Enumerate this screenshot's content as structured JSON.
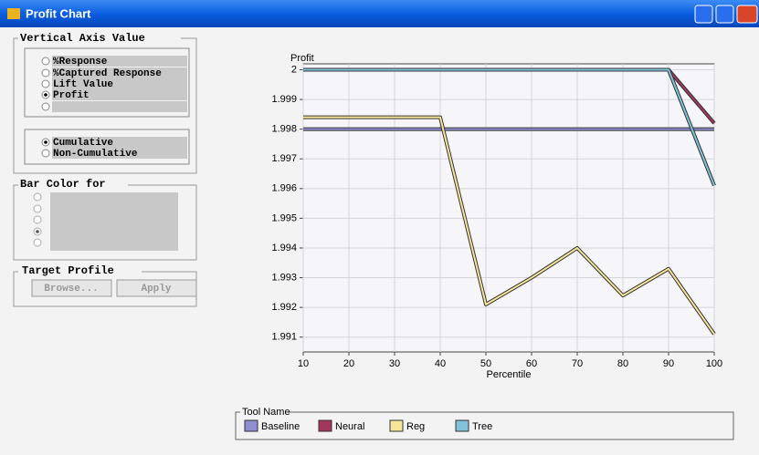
{
  "window": {
    "title": "Profit Chart"
  },
  "panel": {
    "vertical_axis": {
      "title": "Vertical Axis Value",
      "options": [
        "%Response",
        "%Captured Response",
        "Lift Value",
        "Profit"
      ],
      "selected": 3
    },
    "mode": {
      "options": [
        "Cumulative",
        "Non-Cumulative"
      ],
      "selected": 0
    },
    "bar_color": {
      "title": "Bar Color for"
    },
    "target_profile": {
      "title": "Target Profile",
      "buttons": [
        "Browse...",
        "Apply"
      ]
    }
  },
  "chart_data": {
    "type": "line",
    "y_label": "Profit",
    "x_label": "Percentile",
    "legend_title": "Tool Name",
    "x": [
      10,
      20,
      30,
      40,
      50,
      60,
      70,
      80,
      90,
      100
    ],
    "series": [
      {
        "name": "Baseline",
        "color": "#8e8ed0",
        "values": [
          1.998,
          1.998,
          1.998,
          1.998,
          1.998,
          1.998,
          1.998,
          1.998,
          1.998,
          1.998
        ]
      },
      {
        "name": "Neural",
        "color": "#a3365c",
        "values": [
          2,
          2,
          2,
          2,
          2,
          2,
          2,
          2,
          2,
          1.9982
        ]
      },
      {
        "name": "Reg",
        "color": "#f6e69c",
        "values": [
          1.9984,
          1.9984,
          1.9984,
          1.9984,
          1.9921,
          1.993,
          1.994,
          1.9924,
          1.9933,
          1.9911
        ]
      },
      {
        "name": "Tree",
        "color": "#80c2da",
        "values": [
          2,
          2,
          2,
          2,
          2,
          2,
          2,
          2,
          2,
          1.9961
        ]
      }
    ],
    "xlim": [
      10,
      100
    ],
    "xticks": [
      10,
      20,
      30,
      40,
      50,
      60,
      70,
      80,
      90,
      100
    ],
    "ylim": [
      1.9905,
      2.0002
    ],
    "yticks": [
      1.991,
      1.992,
      1.993,
      1.994,
      1.995,
      1.996,
      1.997,
      1.998,
      1.999,
      2
    ],
    "grid": true,
    "legend": "bottom"
  }
}
